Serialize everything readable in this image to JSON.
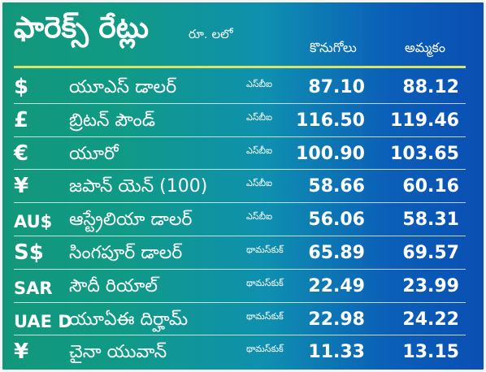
{
  "header": {
    "title": "ఫారెక్స్ రేట్లు",
    "unit": "రూ. లలో",
    "col_buy": "కొనుగోలు",
    "col_sell": "అమ్మకం"
  },
  "rows": [
    {
      "symbol": "$",
      "name": "యూఎస్ డాలర్",
      "bank": "ఎస్‌బీఐ",
      "buy": "87.10",
      "sell": "88.12"
    },
    {
      "symbol": "£",
      "name": "బ్రిటన్ పౌండ్",
      "bank": "ఎస్‌బీఐ",
      "buy": "116.50",
      "sell": "119.46"
    },
    {
      "symbol": "€",
      "name": "యూరో",
      "bank": "ఎస్‌బీఐ",
      "buy": "100.90",
      "sell": "103.65"
    },
    {
      "symbol": "¥",
      "name": "జపాన్ యెన్ (100)",
      "bank": "ఎస్‌బీఐ",
      "buy": "58.66",
      "sell": "60.16"
    },
    {
      "symbol": "AU$",
      "name": "ఆస్ట్రేలియా డాలర్",
      "bank": "ఎస్‌బీఐ",
      "buy": "56.06",
      "sell": "58.31"
    },
    {
      "symbol": "S$",
      "name": "సింగపూర్ డాలర్",
      "bank": "థామస్‌కుక్",
      "buy": "65.89",
      "sell": "69.57"
    },
    {
      "symbol": "SAR",
      "name": "సౌదీ రియాల్",
      "bank": "థామస్‌కుక్",
      "buy": "22.49",
      "sell": "23.99"
    },
    {
      "symbol": "UAE D",
      "name": "యూఏఈ దిర్హామ్",
      "bank": "థామస్‌కుక్",
      "buy": "22.98",
      "sell": "24.22"
    },
    {
      "symbol": "¥",
      "name": "చైనా యువాన్",
      "bank": "థామస్‌కుక్",
      "buy": "11.33",
      "sell": "13.15"
    }
  ]
}
